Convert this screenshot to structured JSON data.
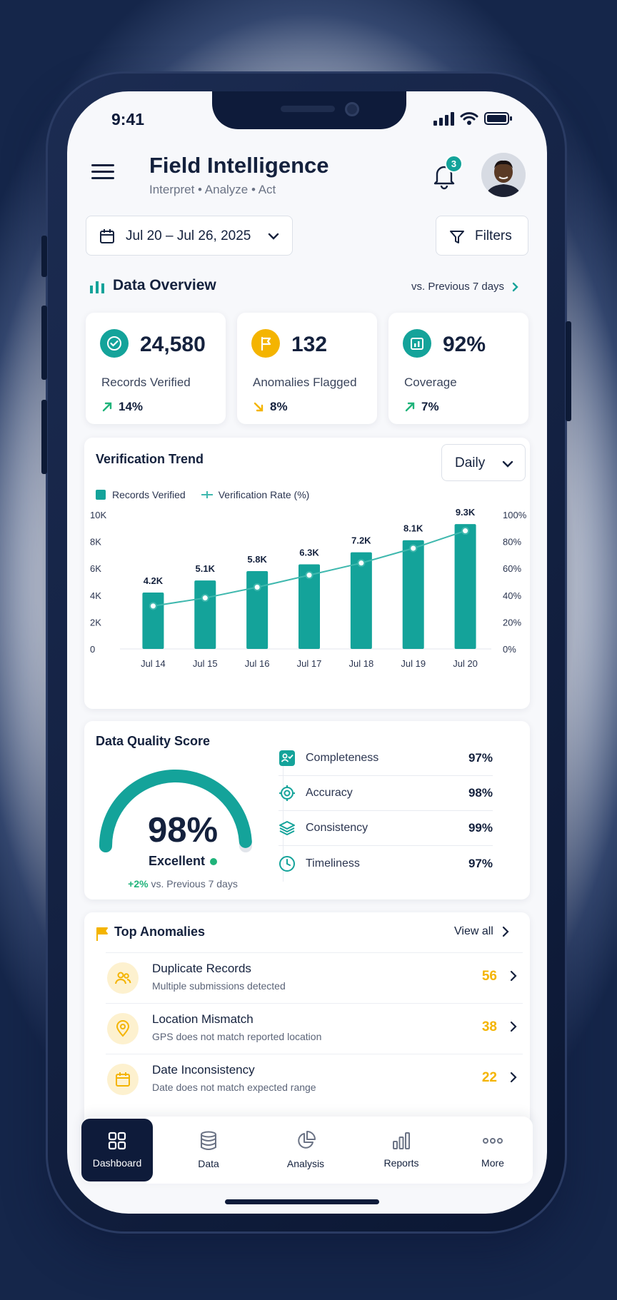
{
  "status_bar": {
    "time": "9:41"
  },
  "header": {
    "title": "Field Intelligence",
    "subtitle": "Interpret • Analyze • Act",
    "notification_count": "3"
  },
  "filters": {
    "date_range": "Jul 20 – Jul 26, 2025",
    "filters_label": "Filters"
  },
  "overview": {
    "title": "Data Overview",
    "compare_link": "vs. Previous 7 days",
    "kpis": [
      {
        "value": "24,580",
        "label": "Records Verified",
        "change": "14%",
        "direction": "up",
        "icon": "check-circle-icon",
        "color": "#14a39a"
      },
      {
        "value": "132",
        "label": "Anomalies Flagged",
        "change": "8%",
        "direction": "down",
        "icon": "flag-icon",
        "color": "#f4b400"
      },
      {
        "value": "92%",
        "label": "Coverage",
        "change": "7%",
        "direction": "up",
        "icon": "coverage-icon",
        "color": "#14a39a"
      }
    ]
  },
  "trend": {
    "title": "Verification Trend",
    "period": "Daily"
  },
  "chart_data": {
    "type": "bar",
    "title": "Verification Trend",
    "categories": [
      "Jul 14",
      "Jul 15",
      "Jul 16",
      "Jul 17",
      "Jul 18",
      "Jul 19",
      "Jul 20"
    ],
    "series": [
      {
        "name": "Records Verified",
        "type": "bar",
        "values": [
          4200,
          5100,
          5800,
          6300,
          7200,
          8100,
          9300
        ],
        "labels": [
          "4.2K",
          "5.1K",
          "5.8K",
          "6.3K",
          "7.2K",
          "8.1K",
          "9.3K"
        ],
        "color": "#14a39a"
      },
      {
        "name": "Verification Rate (%)",
        "type": "line",
        "values": [
          32,
          38,
          46,
          55,
          64,
          75,
          88
        ],
        "color": "#3fb8ae"
      }
    ],
    "y_left": {
      "ticks": [
        "10K",
        "8K",
        "6K",
        "4K",
        "2K",
        "0"
      ],
      "range": [
        0,
        10000
      ]
    },
    "y_right": {
      "ticks": [
        "100%",
        "80%",
        "60%",
        "40%",
        "20%",
        "0%"
      ],
      "range": [
        0,
        100
      ]
    },
    "legend_position": "top-left"
  },
  "quality": {
    "title": "Data Quality Score",
    "score": "98%",
    "score_value": 98,
    "rating": "Excellent",
    "delta": "+2%",
    "delta_text": "vs. Previous 7 days",
    "metrics": [
      {
        "label": "Completeness",
        "value": "97%",
        "icon": "completeness-icon"
      },
      {
        "label": "Accuracy",
        "value": "98%",
        "icon": "target-icon"
      },
      {
        "label": "Consistency",
        "value": "99%",
        "icon": "layers-icon"
      },
      {
        "label": "Timeliness",
        "value": "97%",
        "icon": "clock-icon"
      }
    ]
  },
  "anomalies": {
    "title": "Top Anomalies",
    "view_all": "View all",
    "items": [
      {
        "title": "Duplicate Records",
        "desc": "Multiple submissions detected",
        "count": "56",
        "icon": "users-icon"
      },
      {
        "title": "Location Mismatch",
        "desc": "GPS does not match reported location",
        "count": "38",
        "icon": "location-pin-icon"
      },
      {
        "title": "Date Inconsistency",
        "desc": "Date does not match expected range",
        "count": "22",
        "icon": "calendar-icon"
      }
    ]
  },
  "nav": {
    "items": [
      {
        "label": "Dashboard",
        "icon": "dashboard-icon",
        "active": true
      },
      {
        "label": "Data",
        "icon": "database-icon"
      },
      {
        "label": "Analysis",
        "icon": "pie-chart-icon"
      },
      {
        "label": "Reports",
        "icon": "bar-chart-icon"
      },
      {
        "label": "More",
        "icon": "more-icon"
      }
    ]
  },
  "colors": {
    "teal": "#14a39a",
    "amber": "#f4b400",
    "navy": "#0e1b3a",
    "green": "#1fb37a"
  }
}
